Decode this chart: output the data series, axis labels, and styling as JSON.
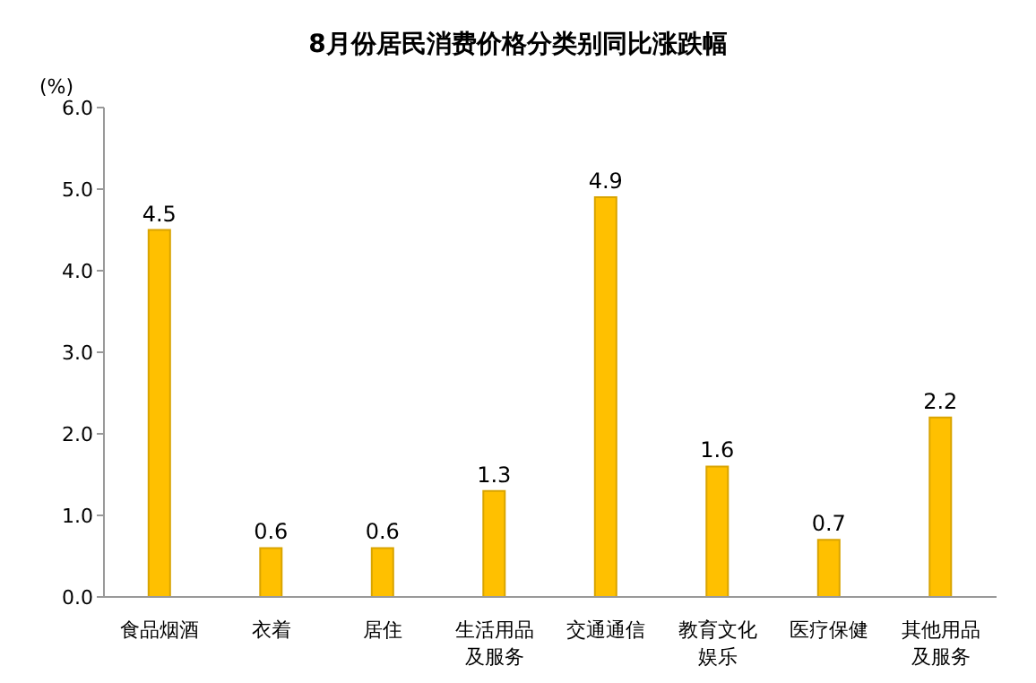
{
  "chart_data": {
    "type": "bar",
    "title": "8月份居民消费价格分类别同比涨跌幅",
    "ylabel": "(%)",
    "categories": [
      "食品烟酒",
      "衣着",
      "居住",
      "生活用品及服务",
      "交通通信",
      "教育文化娱乐",
      "医疗保健",
      "其他用品及服务"
    ],
    "values": [
      4.5,
      0.6,
      0.6,
      1.3,
      4.9,
      1.6,
      0.7,
      2.2
    ],
    "color": "#ffc000",
    "ylim": [
      0,
      6
    ],
    "yticks": [
      {
        "value": 0,
        "label": "0.0"
      },
      {
        "value": 1,
        "label": "1.0"
      },
      {
        "value": 2,
        "label": "2.0"
      },
      {
        "value": 3,
        "label": "3.0"
      },
      {
        "value": 4,
        "label": "4.0"
      },
      {
        "value": 5,
        "label": "5.0"
      },
      {
        "value": 6,
        "label": "6.0"
      }
    ],
    "data_labels": true,
    "legend": false,
    "grid": false
  }
}
